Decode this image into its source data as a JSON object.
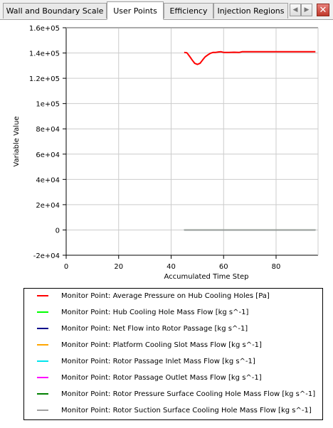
{
  "tabs": [
    {
      "label": "Wall and Boundary Scale",
      "active": false
    },
    {
      "label": "User Points",
      "active": true
    },
    {
      "label": "Efficiency",
      "active": false
    },
    {
      "label": "Injection Regions",
      "active": false
    }
  ],
  "nav": {
    "prev_icon": "chevron-left-icon",
    "next_icon": "chevron-right-icon",
    "close_icon": "close-icon",
    "close_glyph": "✕"
  },
  "chart_data": {
    "type": "line",
    "xlabel": "Accumulated Time Step",
    "ylabel": "Variable Value",
    "xlim": [
      0,
      96
    ],
    "ylim": [
      -20000,
      160000
    ],
    "x_ticks": [
      "0",
      "20",
      "40",
      "60",
      "80"
    ],
    "x_tick_values": [
      0,
      20,
      40,
      60,
      80
    ],
    "y_ticks": [
      "-2e+04",
      "0",
      "2e+04",
      "4e+04",
      "6e+04",
      "8e+04",
      "1e+05",
      "1.2e+05",
      "1.4e+05",
      "1.6e+05"
    ],
    "y_tick_values": [
      -20000,
      0,
      20000,
      40000,
      60000,
      80000,
      100000,
      120000,
      140000,
      160000
    ],
    "grid": true,
    "legend_placement": "bottom",
    "series": [
      {
        "name": "Monitor Point: Average Pressure on Hub Cooling Holes [Pa]",
        "color": "#ff0000",
        "x": [
          45,
          46,
          47,
          48,
          49,
          50,
          51,
          52,
          53,
          54,
          55,
          56,
          57,
          58,
          59,
          60,
          62,
          64,
          66,
          67,
          70,
          75,
          80,
          85,
          90,
          95
        ],
        "y": [
          140500,
          140200,
          137500,
          134500,
          131800,
          131000,
          131800,
          134500,
          137000,
          138500,
          139800,
          140500,
          140500,
          140800,
          141000,
          140500,
          140500,
          140600,
          140500,
          141000,
          141000,
          141000,
          141000,
          141000,
          141000,
          141000
        ]
      },
      {
        "name": "Monitor Point: Hub Cooling Hole Mass Flow [kg s^-1]",
        "color": "#00ff00",
        "x": [
          45,
          95
        ],
        "y": [
          0,
          0
        ]
      },
      {
        "name": "Monitor Point: Net Flow into Rotor Passage [kg s^-1]",
        "color": "#00008b",
        "x": [
          45,
          95
        ],
        "y": [
          0,
          0
        ]
      },
      {
        "name": "Monitor Point: Platform Cooling Slot Mass Flow [kg s^-1]",
        "color": "#ffa500",
        "x": [
          45,
          95
        ],
        "y": [
          0,
          0
        ]
      },
      {
        "name": "Monitor Point: Rotor Passage Inlet Mass Flow [kg s^-1]",
        "color": "#00e5ee",
        "x": [
          45,
          95
        ],
        "y": [
          0,
          0
        ]
      },
      {
        "name": "Monitor Point: Rotor Passage Outlet Mass Flow [kg s^-1]",
        "color": "#ff00ff",
        "x": [
          45,
          95
        ],
        "y": [
          0,
          0
        ]
      },
      {
        "name": "Monitor Point: Rotor Pressure Surface Cooling Hole Mass Flow [kg s^-1]",
        "color": "#008000",
        "x": [
          45,
          95
        ],
        "y": [
          0,
          0
        ]
      },
      {
        "name": "Monitor Point: Rotor Suction Surface Cooling Hole Mass Flow [kg s^-1]",
        "color": "#a0a0a0",
        "x": [
          45,
          95
        ],
        "y": [
          0,
          0
        ]
      }
    ]
  }
}
